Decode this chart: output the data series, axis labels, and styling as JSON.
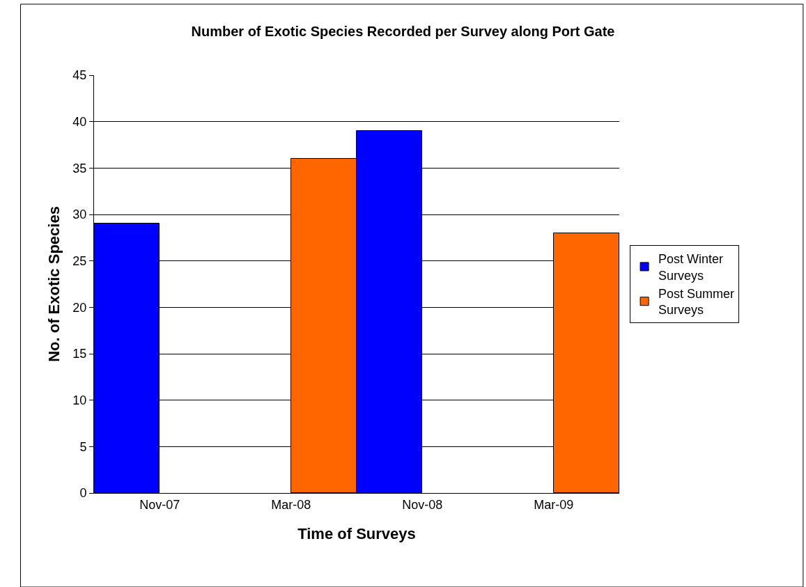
{
  "chart_data": {
    "type": "bar",
    "title": "Number of Exotic Species Recorded per Survey along Port Gate",
    "xlabel": "Time of Surveys",
    "ylabel": "No. of Exotic Species",
    "categories": [
      "Nov-07",
      "Mar-08",
      "Nov-08",
      "Mar-09"
    ],
    "series": [
      {
        "name": "Post Winter Surveys",
        "color": "#0000ff",
        "values": [
          29,
          null,
          39,
          null
        ]
      },
      {
        "name": "Post Summer Surveys",
        "color": "#ff6600",
        "values": [
          null,
          36,
          null,
          28
        ]
      }
    ],
    "ylim": [
      0,
      45
    ],
    "yticks": [
      0,
      5,
      10,
      15,
      20,
      25,
      30,
      35,
      40,
      45
    ],
    "grid": "y",
    "legend": "right"
  }
}
